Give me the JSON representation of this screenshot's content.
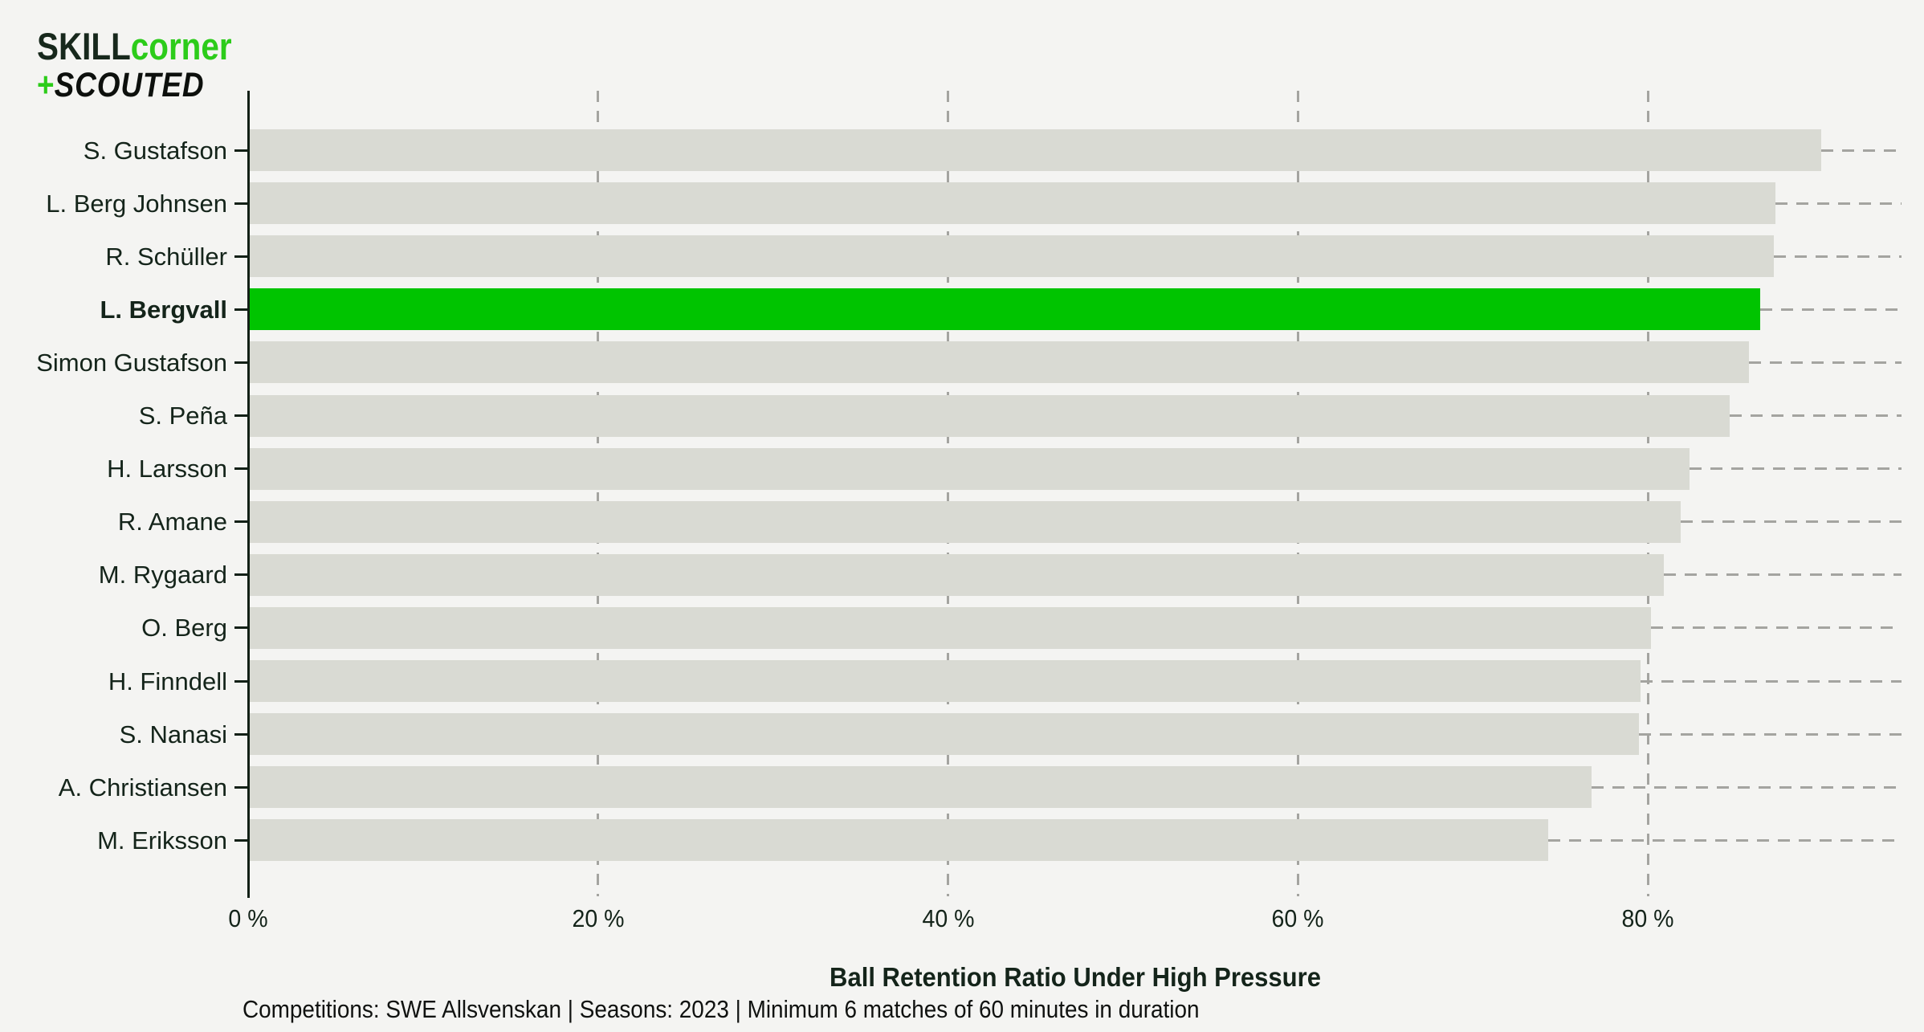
{
  "logo": {
    "part_skill": "SKILL",
    "part_corner": "corner",
    "plus": "+",
    "part_scouted": "SCOUTED"
  },
  "colors": {
    "background": "#f4f4f2",
    "bar": "#d9dad3",
    "highlight": "#00c400",
    "axis": "#122016",
    "grid": "#a4a4a0",
    "text": "#14241a",
    "logo_green": "#2ccc1a",
    "logo_dark": "#17281c",
    "logo_black": "#0d100d"
  },
  "chart_data": {
    "type": "bar",
    "orientation": "horizontal",
    "title": "",
    "xlabel": "Ball Retention Ratio Under High Pressure",
    "ylabel": "",
    "footnote": "Competitions: SWE Allsvenskan | Seasons: 2023 | Minimum 6 matches of 60 minutes in duration",
    "x_tick_labels": [
      "0 %",
      "20 %",
      "40 %",
      "60 %",
      "80 %"
    ],
    "x_tick_values": [
      0,
      20,
      40,
      60,
      80
    ],
    "xlim": [
      0,
      94.5
    ],
    "grid": "vertical dashed gridlines at ticks; dashed leader line from each bar end to right edge",
    "legend": "none",
    "categories": [
      "S. Gustafson",
      "L. Berg Johnsen",
      "R. Schüller",
      "L. Bergvall",
      "Simon Gustafson",
      "S. Peña",
      "H. Larsson",
      "R. Amane",
      "M. Rygaard",
      "O. Berg",
      "H. Finndell",
      "S. Nanasi",
      "A. Christiansen",
      "M. Eriksson"
    ],
    "values": [
      89.9,
      87.3,
      87.2,
      86.4,
      85.8,
      84.7,
      82.4,
      81.9,
      80.9,
      80.2,
      79.6,
      79.5,
      76.8,
      74.3
    ],
    "highlighted_category": "L. Bergvall",
    "highlight_index": 3
  }
}
